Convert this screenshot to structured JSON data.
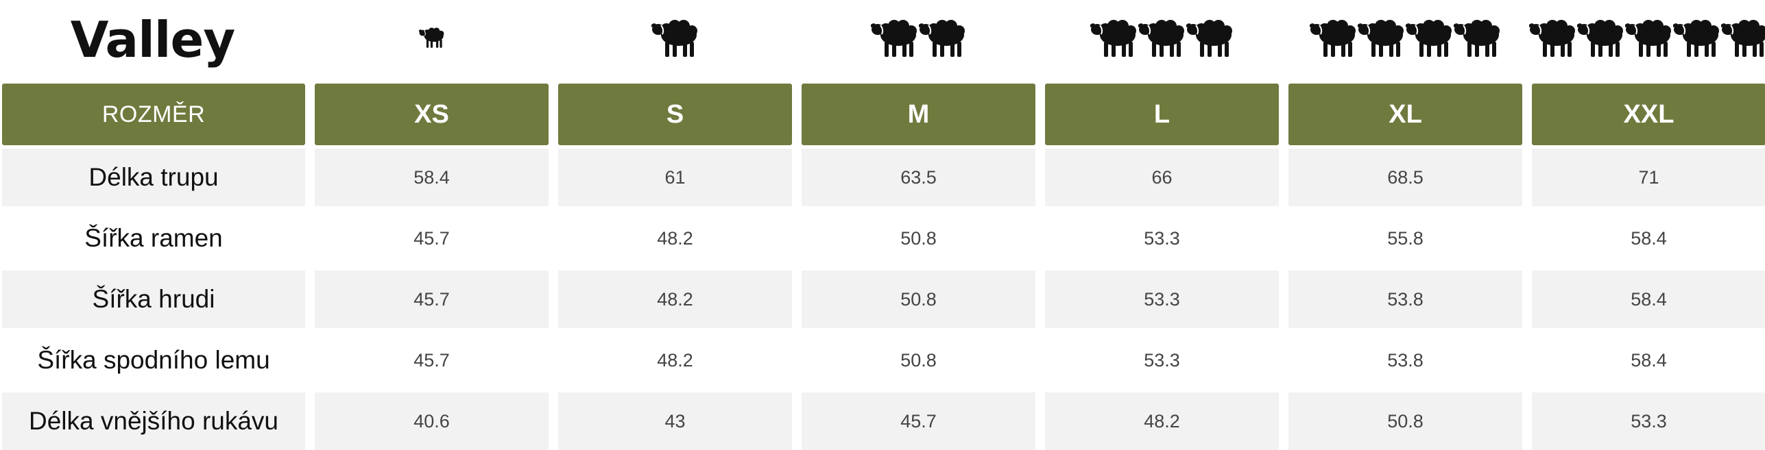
{
  "title": "Valley",
  "header_label": "ROZMĚR",
  "sizes": [
    {
      "label": "XS",
      "sheep_count": 0.5
    },
    {
      "label": "S",
      "sheep_count": 1
    },
    {
      "label": "M",
      "sheep_count": 2
    },
    {
      "label": "L",
      "sheep_count": 3
    },
    {
      "label": "XL",
      "sheep_count": 4
    },
    {
      "label": "XXL",
      "sheep_count": 5
    }
  ],
  "rows": [
    {
      "label": "Délka trupu",
      "values": [
        "58.4",
        "61",
        "63.5",
        "66",
        "68.5",
        "71"
      ]
    },
    {
      "label": "Šířka ramen",
      "values": [
        "45.7",
        "48.2",
        "50.8",
        "53.3",
        "55.8",
        "58.4"
      ]
    },
    {
      "label": "Šířka hrudi",
      "values": [
        "45.7",
        "48.2",
        "50.8",
        "53.3",
        "53.8",
        "58.4"
      ]
    },
    {
      "label": "Šířka spodního lemu",
      "values": [
        "45.7",
        "48.2",
        "50.8",
        "53.3",
        "53.8",
        "58.4"
      ]
    },
    {
      "label": "Délka vnějšího rukávu",
      "values": [
        "40.6",
        "43",
        "45.7",
        "48.2",
        "50.8",
        "53.3"
      ]
    }
  ],
  "colors": {
    "header_bg": "#6f7a3e",
    "row_shade": "#f2f2f3",
    "icon": "sheep-icon"
  }
}
